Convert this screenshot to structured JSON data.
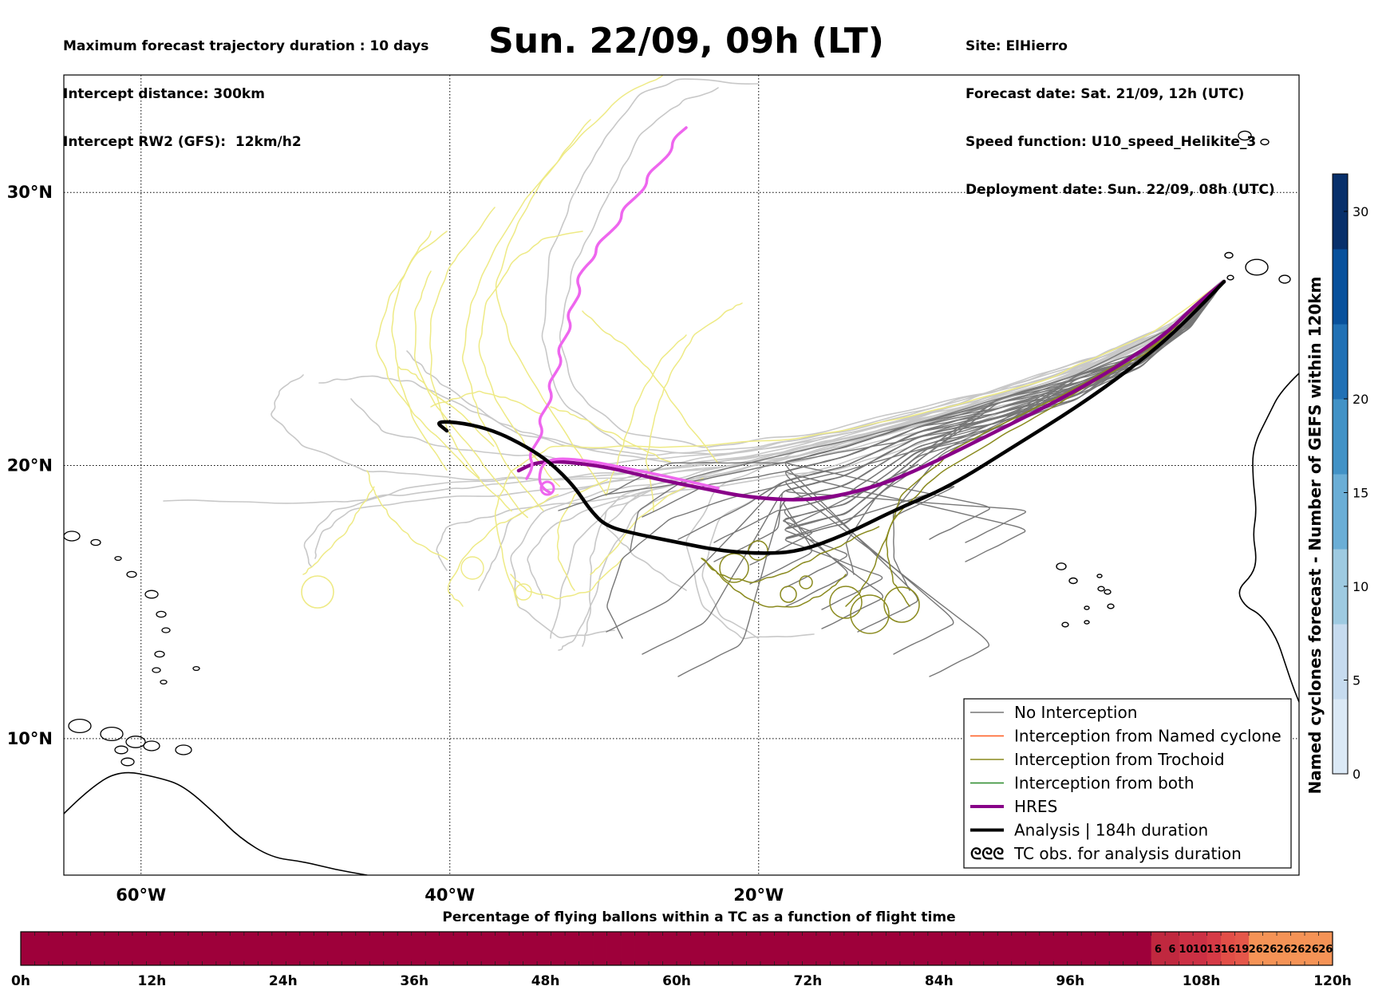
{
  "header": {
    "left_lines": [
      "Maximum forecast trajectory duration : 10 days",
      "Intercept distance: 300km",
      "Intercept RW2 (GFS):  12km/h2"
    ],
    "title": "Sun. 22/09, 09h (LT)",
    "right_lines": [
      "Site: ElHierro",
      "Forecast date: Sat. 21/09, 12h (UTC)",
      "Speed function: U10_speed_Helikite_3",
      "Deployment date: Sun. 22/09, 08h (UTC)"
    ]
  },
  "map": {
    "lon_range": [
      -65,
      15
    ],
    "lat_range": [
      5,
      34.3
    ],
    "lat_ticks": [
      {
        "value": 30,
        "label": "30°N"
      },
      {
        "value": 20,
        "label": "20°N"
      },
      {
        "value": 10,
        "label": "10°N"
      }
    ],
    "lon_ticks": [
      {
        "value": -60,
        "label": "60°W"
      },
      {
        "value": -40,
        "label": "40°W"
      },
      {
        "value": -20,
        "label": "20°W"
      }
    ],
    "grid": "dotted",
    "colors": {
      "no_interception": "#777777",
      "gray_light": "#c8c8c8",
      "named_cyclone": "#ff5a1f",
      "trochoid": "#8a8a1e",
      "trochoid_light": "#eeea85",
      "both": "#2a8a2a",
      "hres": "#880088",
      "hres_light": "#ee66ee",
      "analysis": "#000000",
      "coast": "#000000"
    }
  },
  "legend": {
    "items": [
      {
        "label": "No Interception",
        "color": "#777777",
        "width": 1.5
      },
      {
        "label": "Interception from Named cyclone",
        "color": "#ff5a1f",
        "width": 1.5
      },
      {
        "label": "Interception from Trochoid",
        "color": "#8a8a1e",
        "width": 1.5
      },
      {
        "label": "Interception from both",
        "color": "#2a8a2a",
        "width": 1.5
      },
      {
        "label": "HRES",
        "color": "#880088",
        "width": 4
      },
      {
        "label": "Analysis | 184h duration",
        "color": "#000000",
        "width": 4
      },
      {
        "label": "TC obs. for analysis duration",
        "color": "#000000",
        "width": 0,
        "marker": "ᘓᘓᘓ"
      }
    ]
  },
  "colorbar": {
    "label": "Named cyclones forecast - Number of GEFS within 120km",
    "range": [
      0,
      32
    ],
    "ticks": [
      0,
      5,
      10,
      15,
      20,
      30
    ],
    "colors": [
      "#dbe9f6",
      "#c6dbef",
      "#9ecae1",
      "#6baed6",
      "#4292c6",
      "#2171b5",
      "#08519c",
      "#08306b"
    ]
  },
  "progress_bar": {
    "title": "Percentage of flying ballons within a TC as a function of flight time",
    "ticks": [
      "0h",
      "12h",
      "24h",
      "36h",
      "48h",
      "60h",
      "72h",
      "84h",
      "96h",
      "108h",
      "120h"
    ],
    "cells_before_values": 81,
    "values": [
      6,
      6,
      10,
      10,
      13,
      16,
      19,
      26,
      26,
      26,
      26,
      26,
      26
    ],
    "zero_color": "#9e003a",
    "value_colors": {
      "6": "#c0283f",
      "10": "#cc3044",
      "13": "#d63a46",
      "16": "#e24e47",
      "19": "#e5574a",
      "26": "#f59356"
    }
  }
}
